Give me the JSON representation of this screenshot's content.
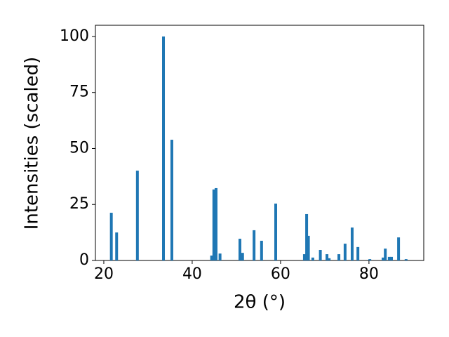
{
  "chart_data": {
    "type": "bar",
    "x_label": "2θ (°)",
    "y_label": "Intensities (scaled)",
    "color": "#1f77b4",
    "x": [
      21.7,
      22.9,
      27.6,
      33.5,
      35.4,
      44.4,
      44.9,
      45.4,
      46.3,
      50.8,
      51.4,
      54.0,
      55.7,
      58.9,
      65.4,
      65.9,
      66.3,
      67.3,
      69.0,
      70.5,
      71.0,
      73.2,
      74.6,
      76.2,
      77.5,
      80.2,
      83.2,
      83.7,
      84.6,
      85.1,
      86.7,
      88.4
    ],
    "values": [
      21.3,
      12.5,
      40.1,
      100,
      53.9,
      2.2,
      31.7,
      32.3,
      3.1,
      9.7,
      3.4,
      13.5,
      8.8,
      25.4,
      2.8,
      20.7,
      11.0,
      1.3,
      4.7,
      2.8,
      1.0,
      2.8,
      7.5,
      14.7,
      6.0,
      0.6,
      1.3,
      5.3,
      1.6,
      1.6,
      10.3,
      0.6
    ],
    "xlim": [
      18.1,
      92.4
    ],
    "ylim": [
      0,
      105
    ],
    "xticks": [
      20,
      40,
      60,
      80
    ],
    "yticks": [
      0,
      25,
      50,
      75,
      100
    ]
  }
}
